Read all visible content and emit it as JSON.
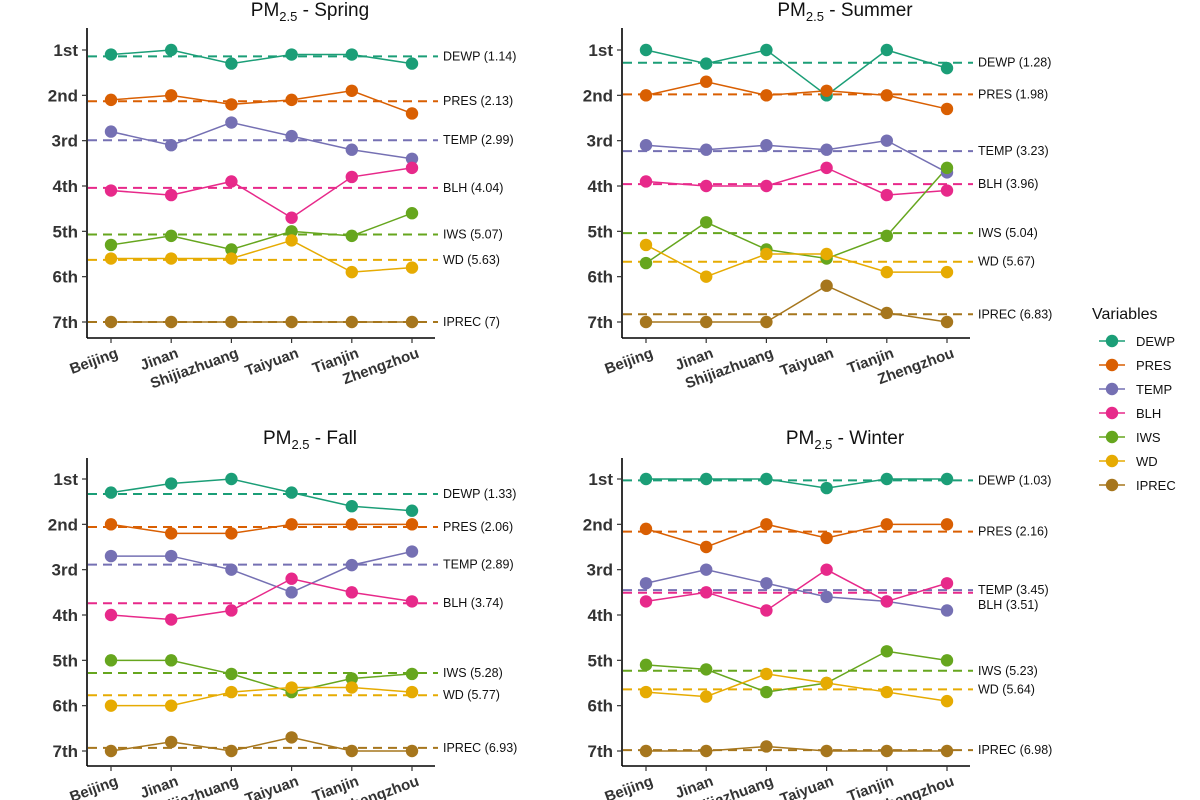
{
  "legend": {
    "title": "Variables",
    "items": [
      {
        "name": "DEWP",
        "color": "#1b9e77"
      },
      {
        "name": "PRES",
        "color": "#d95f02"
      },
      {
        "name": "TEMP",
        "color": "#7570b3"
      },
      {
        "name": "BLH",
        "color": "#e7298a"
      },
      {
        "name": "IWS",
        "color": "#66a61e"
      },
      {
        "name": "WD",
        "color": "#e6ab02"
      },
      {
        "name": "IPREC",
        "color": "#a6761d"
      }
    ]
  },
  "chart_data": [
    {
      "type": "line",
      "title": "PM2.5 - Spring",
      "title_main": "PM",
      "title_sub": "2.5",
      "title_rest": " - Spring",
      "categories": [
        "Beijing",
        "Jinan",
        "Shijiazhuang",
        "Taiyuan",
        "Tianjin",
        "Zhengzhou"
      ],
      "ylim": [
        1,
        7
      ],
      "yticks": [
        "1st",
        "2nd",
        "3rd",
        "4th",
        "5th",
        "6th",
        "7th"
      ],
      "y_reversed": true,
      "series": [
        {
          "name": "DEWP",
          "color": "#1b9e77",
          "values": [
            1.1,
            1.0,
            1.3,
            1.1,
            1.1,
            1.3
          ],
          "mean": 1.14,
          "mean_label": "DEWP (1.14)"
        },
        {
          "name": "PRES",
          "color": "#d95f02",
          "values": [
            2.1,
            2.0,
            2.2,
            2.1,
            1.9,
            2.4
          ],
          "mean": 2.13,
          "mean_label": "PRES (2.13)"
        },
        {
          "name": "TEMP",
          "color": "#7570b3",
          "values": [
            2.8,
            3.1,
            2.6,
            2.9,
            3.2,
            3.4
          ],
          "mean": 2.99,
          "mean_label": "TEMP (2.99)"
        },
        {
          "name": "BLH",
          "color": "#e7298a",
          "values": [
            4.1,
            4.2,
            3.9,
            4.7,
            3.8,
            3.6
          ],
          "mean": 4.04,
          "mean_label": "BLH (4.04)"
        },
        {
          "name": "IWS",
          "color": "#66a61e",
          "values": [
            5.3,
            5.1,
            5.4,
            5.0,
            5.1,
            4.6
          ],
          "mean": 5.07,
          "mean_label": "IWS (5.07)"
        },
        {
          "name": "WD",
          "color": "#e6ab02",
          "values": [
            5.6,
            5.6,
            5.6,
            5.2,
            5.9,
            5.8
          ],
          "mean": 5.63,
          "mean_label": "WD (5.63)"
        },
        {
          "name": "IPREC",
          "color": "#a6761d",
          "values": [
            7.0,
            7.0,
            7.0,
            7.0,
            7.0,
            7.0
          ],
          "mean": 7.0,
          "mean_label": "IPREC (7)"
        }
      ]
    },
    {
      "type": "line",
      "title": "PM2.5 - Summer",
      "title_main": "PM",
      "title_sub": "2.5",
      "title_rest": " - Summer",
      "categories": [
        "Beijing",
        "Jinan",
        "Shijiazhuang",
        "Taiyuan",
        "Tianjin",
        "Zhengzhou"
      ],
      "ylim": [
        1,
        7
      ],
      "yticks": [
        "1st",
        "2nd",
        "3rd",
        "4th",
        "5th",
        "6th",
        "7th"
      ],
      "y_reversed": true,
      "series": [
        {
          "name": "DEWP",
          "color": "#1b9e77",
          "values": [
            1.0,
            1.3,
            1.0,
            2.0,
            1.0,
            1.4
          ],
          "mean": 1.28,
          "mean_label": "DEWP (1.28)"
        },
        {
          "name": "PRES",
          "color": "#d95f02",
          "values": [
            2.0,
            1.7,
            2.0,
            1.9,
            2.0,
            2.3
          ],
          "mean": 1.98,
          "mean_label": "PRES (1.98)"
        },
        {
          "name": "TEMP",
          "color": "#7570b3",
          "values": [
            3.1,
            3.2,
            3.1,
            3.2,
            3.0,
            3.7
          ],
          "mean": 3.23,
          "mean_label": "TEMP (3.23)"
        },
        {
          "name": "BLH",
          "color": "#e7298a",
          "values": [
            3.9,
            4.0,
            4.0,
            3.6,
            4.2,
            4.1
          ],
          "mean": 3.96,
          "mean_label": "BLH (3.96)"
        },
        {
          "name": "IWS",
          "color": "#66a61e",
          "values": [
            5.7,
            4.8,
            5.4,
            5.6,
            5.1,
            3.6
          ],
          "mean": 5.04,
          "mean_label": "IWS (5.04)"
        },
        {
          "name": "WD",
          "color": "#e6ab02",
          "values": [
            5.3,
            6.0,
            5.5,
            5.5,
            5.9,
            5.9
          ],
          "mean": 5.67,
          "mean_label": "WD (5.67)"
        },
        {
          "name": "IPREC",
          "color": "#a6761d",
          "values": [
            7.0,
            7.0,
            7.0,
            6.2,
            6.8,
            7.0
          ],
          "mean": 6.83,
          "mean_label": "IPREC (6.83)"
        }
      ]
    },
    {
      "type": "line",
      "title": "PM2.5 - Fall",
      "title_main": "PM",
      "title_sub": "2.5",
      "title_rest": " - Fall",
      "categories": [
        "Beijing",
        "Jinan",
        "Shijiazhuang",
        "Taiyuan",
        "Tianjin",
        "Zhengzhou"
      ],
      "ylim": [
        1,
        7
      ],
      "yticks": [
        "1st",
        "2nd",
        "3rd",
        "4th",
        "5th",
        "6th",
        "7th"
      ],
      "y_reversed": true,
      "series": [
        {
          "name": "DEWP",
          "color": "#1b9e77",
          "values": [
            1.3,
            1.1,
            1.0,
            1.3,
            1.6,
            1.7
          ],
          "mean": 1.33,
          "mean_label": "DEWP (1.33)"
        },
        {
          "name": "PRES",
          "color": "#d95f02",
          "values": [
            2.0,
            2.2,
            2.2,
            2.0,
            2.0,
            2.0
          ],
          "mean": 2.06,
          "mean_label": "PRES (2.06)"
        },
        {
          "name": "TEMP",
          "color": "#7570b3",
          "values": [
            2.7,
            2.7,
            3.0,
            3.5,
            2.9,
            2.6
          ],
          "mean": 2.89,
          "mean_label": "TEMP (2.89)"
        },
        {
          "name": "BLH",
          "color": "#e7298a",
          "values": [
            4.0,
            4.1,
            3.9,
            3.2,
            3.5,
            3.7
          ],
          "mean": 3.74,
          "mean_label": "BLH (3.74)"
        },
        {
          "name": "IWS",
          "color": "#66a61e",
          "values": [
            5.0,
            5.0,
            5.3,
            5.7,
            5.4,
            5.3
          ],
          "mean": 5.28,
          "mean_label": "IWS (5.28)"
        },
        {
          "name": "WD",
          "color": "#e6ab02",
          "values": [
            6.0,
            6.0,
            5.7,
            5.6,
            5.6,
            5.7
          ],
          "mean": 5.77,
          "mean_label": "WD (5.77)"
        },
        {
          "name": "IPREC",
          "color": "#a6761d",
          "values": [
            7.0,
            6.8,
            7.0,
            6.7,
            7.0,
            7.0
          ],
          "mean": 6.93,
          "mean_label": "IPREC (6.93)"
        }
      ]
    },
    {
      "type": "line",
      "title": "PM2.5 - Winter",
      "title_main": "PM",
      "title_sub": "2.5",
      "title_rest": " - Winter",
      "categories": [
        "Beijing",
        "Jinan",
        "Shijiazhuang",
        "Taiyuan",
        "Tianjin",
        "Zhengzhou"
      ],
      "ylim": [
        1,
        7
      ],
      "yticks": [
        "1st",
        "2nd",
        "3rd",
        "4th",
        "5th",
        "6th",
        "7th"
      ],
      "y_reversed": true,
      "series": [
        {
          "name": "DEWP",
          "color": "#1b9e77",
          "values": [
            1.0,
            1.0,
            1.0,
            1.2,
            1.0,
            1.0
          ],
          "mean": 1.03,
          "mean_label": "DEWP (1.03)"
        },
        {
          "name": "PRES",
          "color": "#d95f02",
          "values": [
            2.1,
            2.5,
            2.0,
            2.3,
            2.0,
            2.0
          ],
          "mean": 2.16,
          "mean_label": "PRES (2.16)"
        },
        {
          "name": "TEMP",
          "color": "#7570b3",
          "values": [
            3.3,
            3.0,
            3.3,
            3.6,
            3.7,
            3.9
          ],
          "mean": 3.45,
          "mean_label": "TEMP (3.45)"
        },
        {
          "name": "BLH",
          "color": "#e7298a",
          "values": [
            3.7,
            3.5,
            3.9,
            3.0,
            3.7,
            3.3
          ],
          "mean": 3.51,
          "mean_label": "BLH (3.51)"
        },
        {
          "name": "IWS",
          "color": "#66a61e",
          "values": [
            5.1,
            5.2,
            5.7,
            5.5,
            4.8,
            5.0
          ],
          "mean": 5.23,
          "mean_label": "IWS (5.23)"
        },
        {
          "name": "WD",
          "color": "#e6ab02",
          "values": [
            5.7,
            5.8,
            5.3,
            5.5,
            5.7,
            5.9
          ],
          "mean": 5.64,
          "mean_label": "WD (5.64)"
        },
        {
          "name": "IPREC",
          "color": "#a6761d",
          "values": [
            7.0,
            7.0,
            6.9,
            7.0,
            7.0,
            7.0
          ],
          "mean": 6.98,
          "mean_label": "IPREC (6.98)"
        }
      ]
    }
  ]
}
